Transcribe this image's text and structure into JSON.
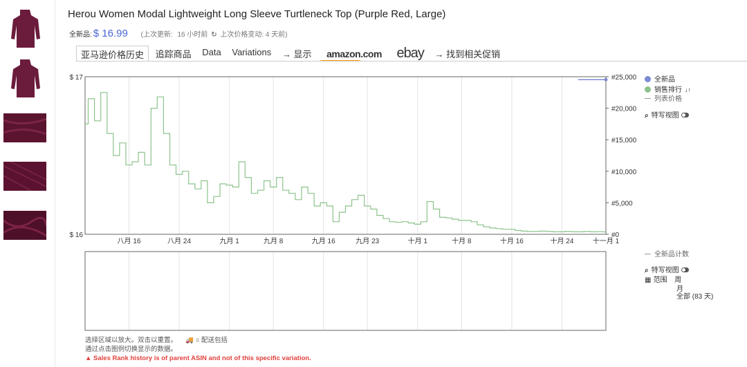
{
  "product": {
    "title": "Herou Women Modal Lightweight Long Sleeve Turtleneck Top (Purple Red, Large)",
    "new_label": "全新品:",
    "price": "$ 16.99",
    "update_prefix": "(上次更新:",
    "update_value": "16 小时前",
    "change_text": "上次价格变动: 4 天前)"
  },
  "tabs": {
    "history": "亚马逊价格历史",
    "track": "追踪商品",
    "data": "Data",
    "variations": "Variations",
    "show_arrow": "→ 显示",
    "amazon": "amazon.com",
    "ebay": "ebay",
    "promo": "→ 找到相关促销"
  },
  "legend_top": {
    "new": "全新品",
    "sales_rank": "销售排行",
    "list_price": "列表价格",
    "closeup": "特写视图"
  },
  "legend_bottom": {
    "new_count": "全新品计数",
    "closeup": "特写视图",
    "range_label": "范围",
    "range_week": "周",
    "range_month": "月",
    "range_all": "全部 (83 天)"
  },
  "footer": {
    "line1": "选择区域以放大。双击以重置。",
    "shipping": "= 配送包括",
    "line2": "通过点击图例切换显示的数据。",
    "warning": "Sales Rank history is of parent ASIN and not of this specific variation."
  },
  "colors": {
    "new_price": "#7d8ad6",
    "sales_rank": "#8cc28c",
    "accent_blue": "#4a66d6",
    "warning": "#e0413e"
  },
  "chart_data": {
    "type": "line",
    "x_tick_labels": [
      "八月 16",
      "八月 24",
      "九月 1",
      "九月 8",
      "九月 16",
      "九月 23",
      "十月 1",
      "十月 8",
      "十月 16",
      "十月 24",
      "十一月 1"
    ],
    "x_range": [
      "八月 9",
      "十一月 1"
    ],
    "y_left_ticks": [
      "$ 17",
      "$ 16"
    ],
    "y_left_range": [
      16,
      17
    ],
    "y_right_ticks": [
      "#25,000",
      "#20,000",
      "#15,000",
      "#10,000",
      "#5,000",
      "#0"
    ],
    "y_right_range": [
      0,
      25000
    ],
    "grid": true,
    "legend_position": "right",
    "series": [
      {
        "name": "全新品",
        "axis": "left",
        "x": [
          "十月 31",
          "十一月 1"
        ],
        "y": [
          16.99,
          16.99
        ]
      },
      {
        "name": "销售排行",
        "axis": "right",
        "x": [
          0,
          1,
          2,
          3,
          4,
          5,
          6,
          7,
          8,
          9,
          10,
          11,
          12,
          13,
          14,
          15,
          16,
          17,
          18,
          19,
          20,
          21,
          22,
          23,
          24,
          25,
          26,
          27,
          28,
          29,
          30,
          31,
          32,
          33,
          34,
          35,
          36,
          37,
          38,
          39,
          40,
          41,
          42,
          43,
          44,
          45,
          46,
          47,
          48,
          49,
          50,
          51,
          52,
          53,
          54,
          55,
          56,
          57,
          58,
          59,
          60,
          61,
          62,
          63,
          64,
          65,
          66,
          67,
          68,
          69,
          70,
          71,
          72,
          73,
          74,
          75,
          76,
          77,
          78,
          79,
          80,
          81,
          82,
          83
        ],
        "x_unit": "天数 (自八月 9)",
        "y": [
          17500,
          21500,
          18000,
          22500,
          16000,
          12500,
          14500,
          11000,
          11500,
          13000,
          11000,
          20000,
          21800,
          16000,
          11000,
          9500,
          10000,
          8000,
          7200,
          8500,
          5000,
          6000,
          8000,
          7800,
          7500,
          11500,
          9000,
          6500,
          7000,
          8500,
          7500,
          9000,
          7000,
          6500,
          5500,
          7500,
          6500,
          4500,
          5000,
          4500,
          2000,
          3500,
          4500,
          5500,
          6200,
          4500,
          4000,
          3000,
          2500,
          2000,
          1900,
          2000,
          1800,
          1600,
          2000,
          5200,
          4000,
          2700,
          2600,
          2400,
          2200,
          2200,
          2000,
          1500,
          1200,
          1000,
          900,
          800,
          800,
          600,
          500,
          450,
          450,
          500,
          450,
          400,
          400,
          450,
          400,
          400,
          450,
          400,
          420,
          380
        ]
      }
    ]
  }
}
